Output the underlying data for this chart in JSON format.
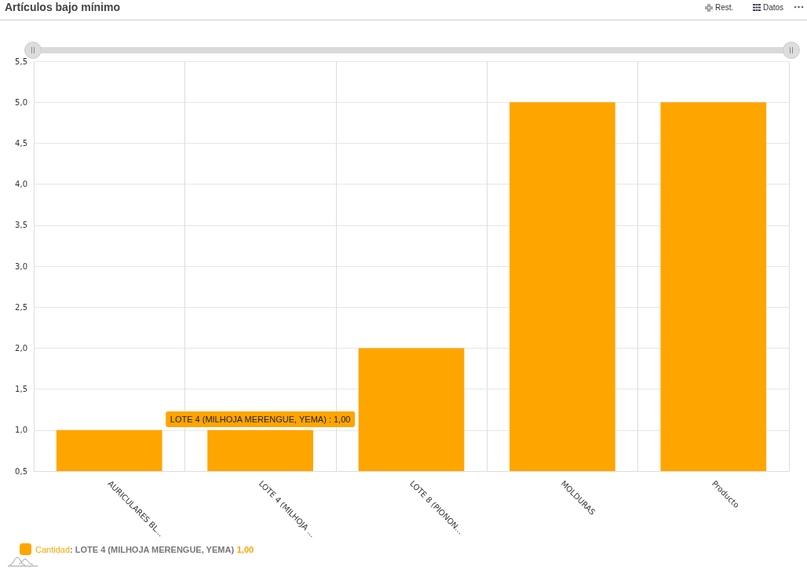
{
  "chart_data": {
    "type": "bar",
    "title": "Artículos bajo mínimo",
    "categories": [
      "AURICULARES BL...",
      "LOTE 4 (MILHOJA ...",
      "LOTE 8 (PIONON...",
      "MOLDURAS",
      "Producto"
    ],
    "series": [
      {
        "name": "Cantidad",
        "color": "#ffa500",
        "values": [
          1,
          1,
          2,
          5,
          5
        ]
      }
    ],
    "ylim": [
      0.5,
      5.5
    ],
    "yticks": [
      {
        "value": 0.5,
        "label": "0,5"
      },
      {
        "value": 1,
        "label": "1,0"
      },
      {
        "value": 1.5,
        "label": "1,5"
      },
      {
        "value": 2,
        "label": "2,0"
      },
      {
        "value": 2.5,
        "label": "2,5"
      },
      {
        "value": 3,
        "label": "3,0"
      },
      {
        "value": 3.5,
        "label": "3,5"
      },
      {
        "value": 4,
        "label": "4,0"
      },
      {
        "value": 4.5,
        "label": "4,5"
      },
      {
        "value": 5,
        "label": "5,0"
      },
      {
        "value": 5.5,
        "label": "5,5"
      }
    ],
    "grid": true,
    "legend": "bottom left",
    "annotations": [
      {
        "text": "LOTE 4 (MILHOJA MERENGUE, YEMA) : 1,00",
        "x": "LOTE 4 (MILHOJA ...",
        "y": 1
      },
      ": LOTE 4 (MILHOJA MERENGUE, YEMA)",
      "1,00",
      "Rest.",
      "Datos"
    ]
  }
}
